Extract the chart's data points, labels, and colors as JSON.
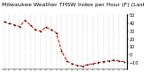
{
  "title": "Milwaukee Weather THSW Index per Hour (F) (Last 24 Hours)",
  "hours": [
    0,
    1,
    2,
    3,
    4,
    5,
    6,
    7,
    8,
    9,
    10,
    11,
    12,
    13,
    14,
    15,
    16,
    17,
    18,
    19,
    20,
    21,
    22,
    23
  ],
  "values": [
    42,
    40,
    38,
    36,
    44,
    38,
    32,
    30,
    35,
    32,
    28,
    5,
    -8,
    -12,
    -14,
    -15,
    -13,
    -12,
    -10,
    -9,
    -8,
    -7,
    -8,
    -9
  ],
  "line_color": "#cc0000",
  "marker_color": "#000000",
  "bg_color": "#ffffff",
  "grid_color": "#999999",
  "ylim": [
    -18,
    52
  ],
  "yticks": [
    -10,
    0,
    10,
    20,
    30,
    40,
    50
  ],
  "ylabel_color": "#000000",
  "title_color": "#000000",
  "title_fontsize": 4.5,
  "tick_fontsize": 3.5
}
